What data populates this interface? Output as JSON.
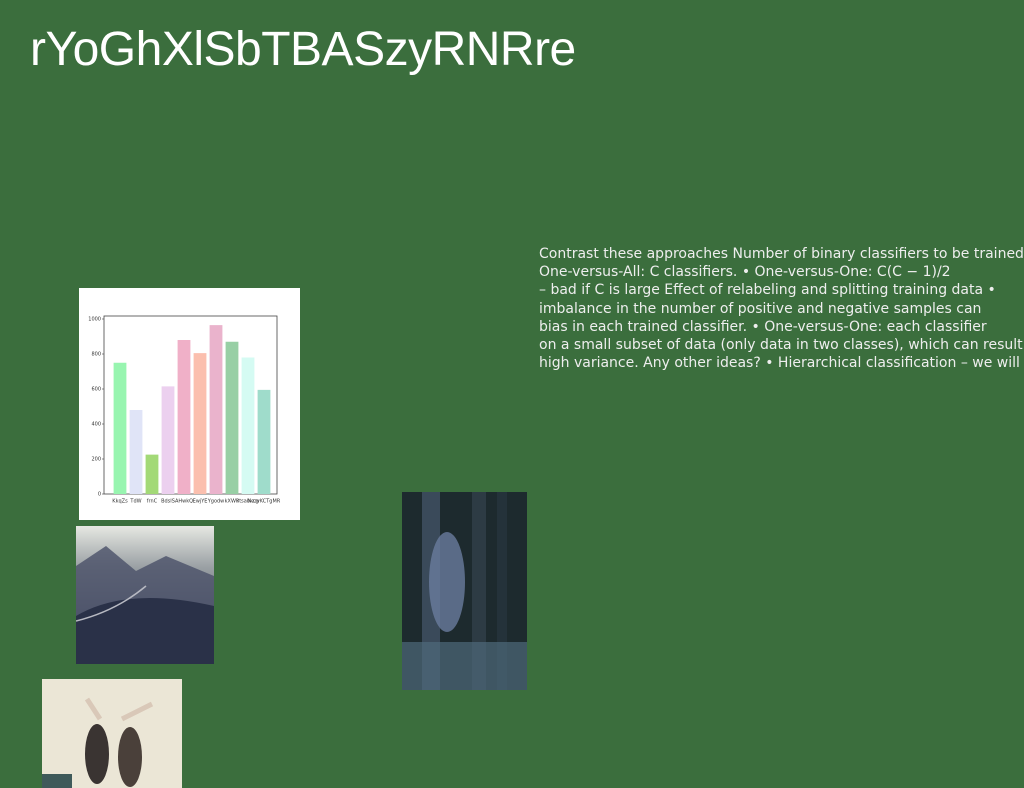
{
  "header": {
    "title": "rYoGhXlSbTBASzyRNRre"
  },
  "body": {
    "lines": [
      "Contrast these approaches Number of binary classifiers to be trained",
      "One-versus-All: C classifiers. • One-versus-One: C(C − 1)/2",
      "– bad if C is large Effect of relabeling and splitting training data •",
      "imbalance in the number of positive and negative samples can",
      "bias in each trained classifier. • One-versus-One: each classifier",
      "on a small subset of data (only data in two classes), which can result",
      "high variance. Any other ideas? • Hierarchical classification – we will"
    ]
  },
  "chart_data": {
    "type": "bar",
    "categories": [
      "KkqZs",
      "TdW",
      "frnC",
      "BdsIS",
      "AHwkQ",
      "EwjYE",
      "Ygodw",
      "kXWR",
      "rtsabkcg",
      "NzzvKCTgMR"
    ],
    "values": [
      750,
      480,
      225,
      615,
      880,
      805,
      965,
      870,
      780,
      595
    ],
    "colors": [
      "#98f5b0",
      "#e0e4f7",
      "#a3d977",
      "#ecd0ef",
      "#f0b0c8",
      "#fbbfae",
      "#eab3cc",
      "#98cfa5",
      "#d5fbf3",
      "#9fdccb"
    ],
    "ylim": [
      0,
      1000
    ],
    "yticks": [
      0,
      200,
      400,
      600,
      800,
      1000
    ]
  }
}
